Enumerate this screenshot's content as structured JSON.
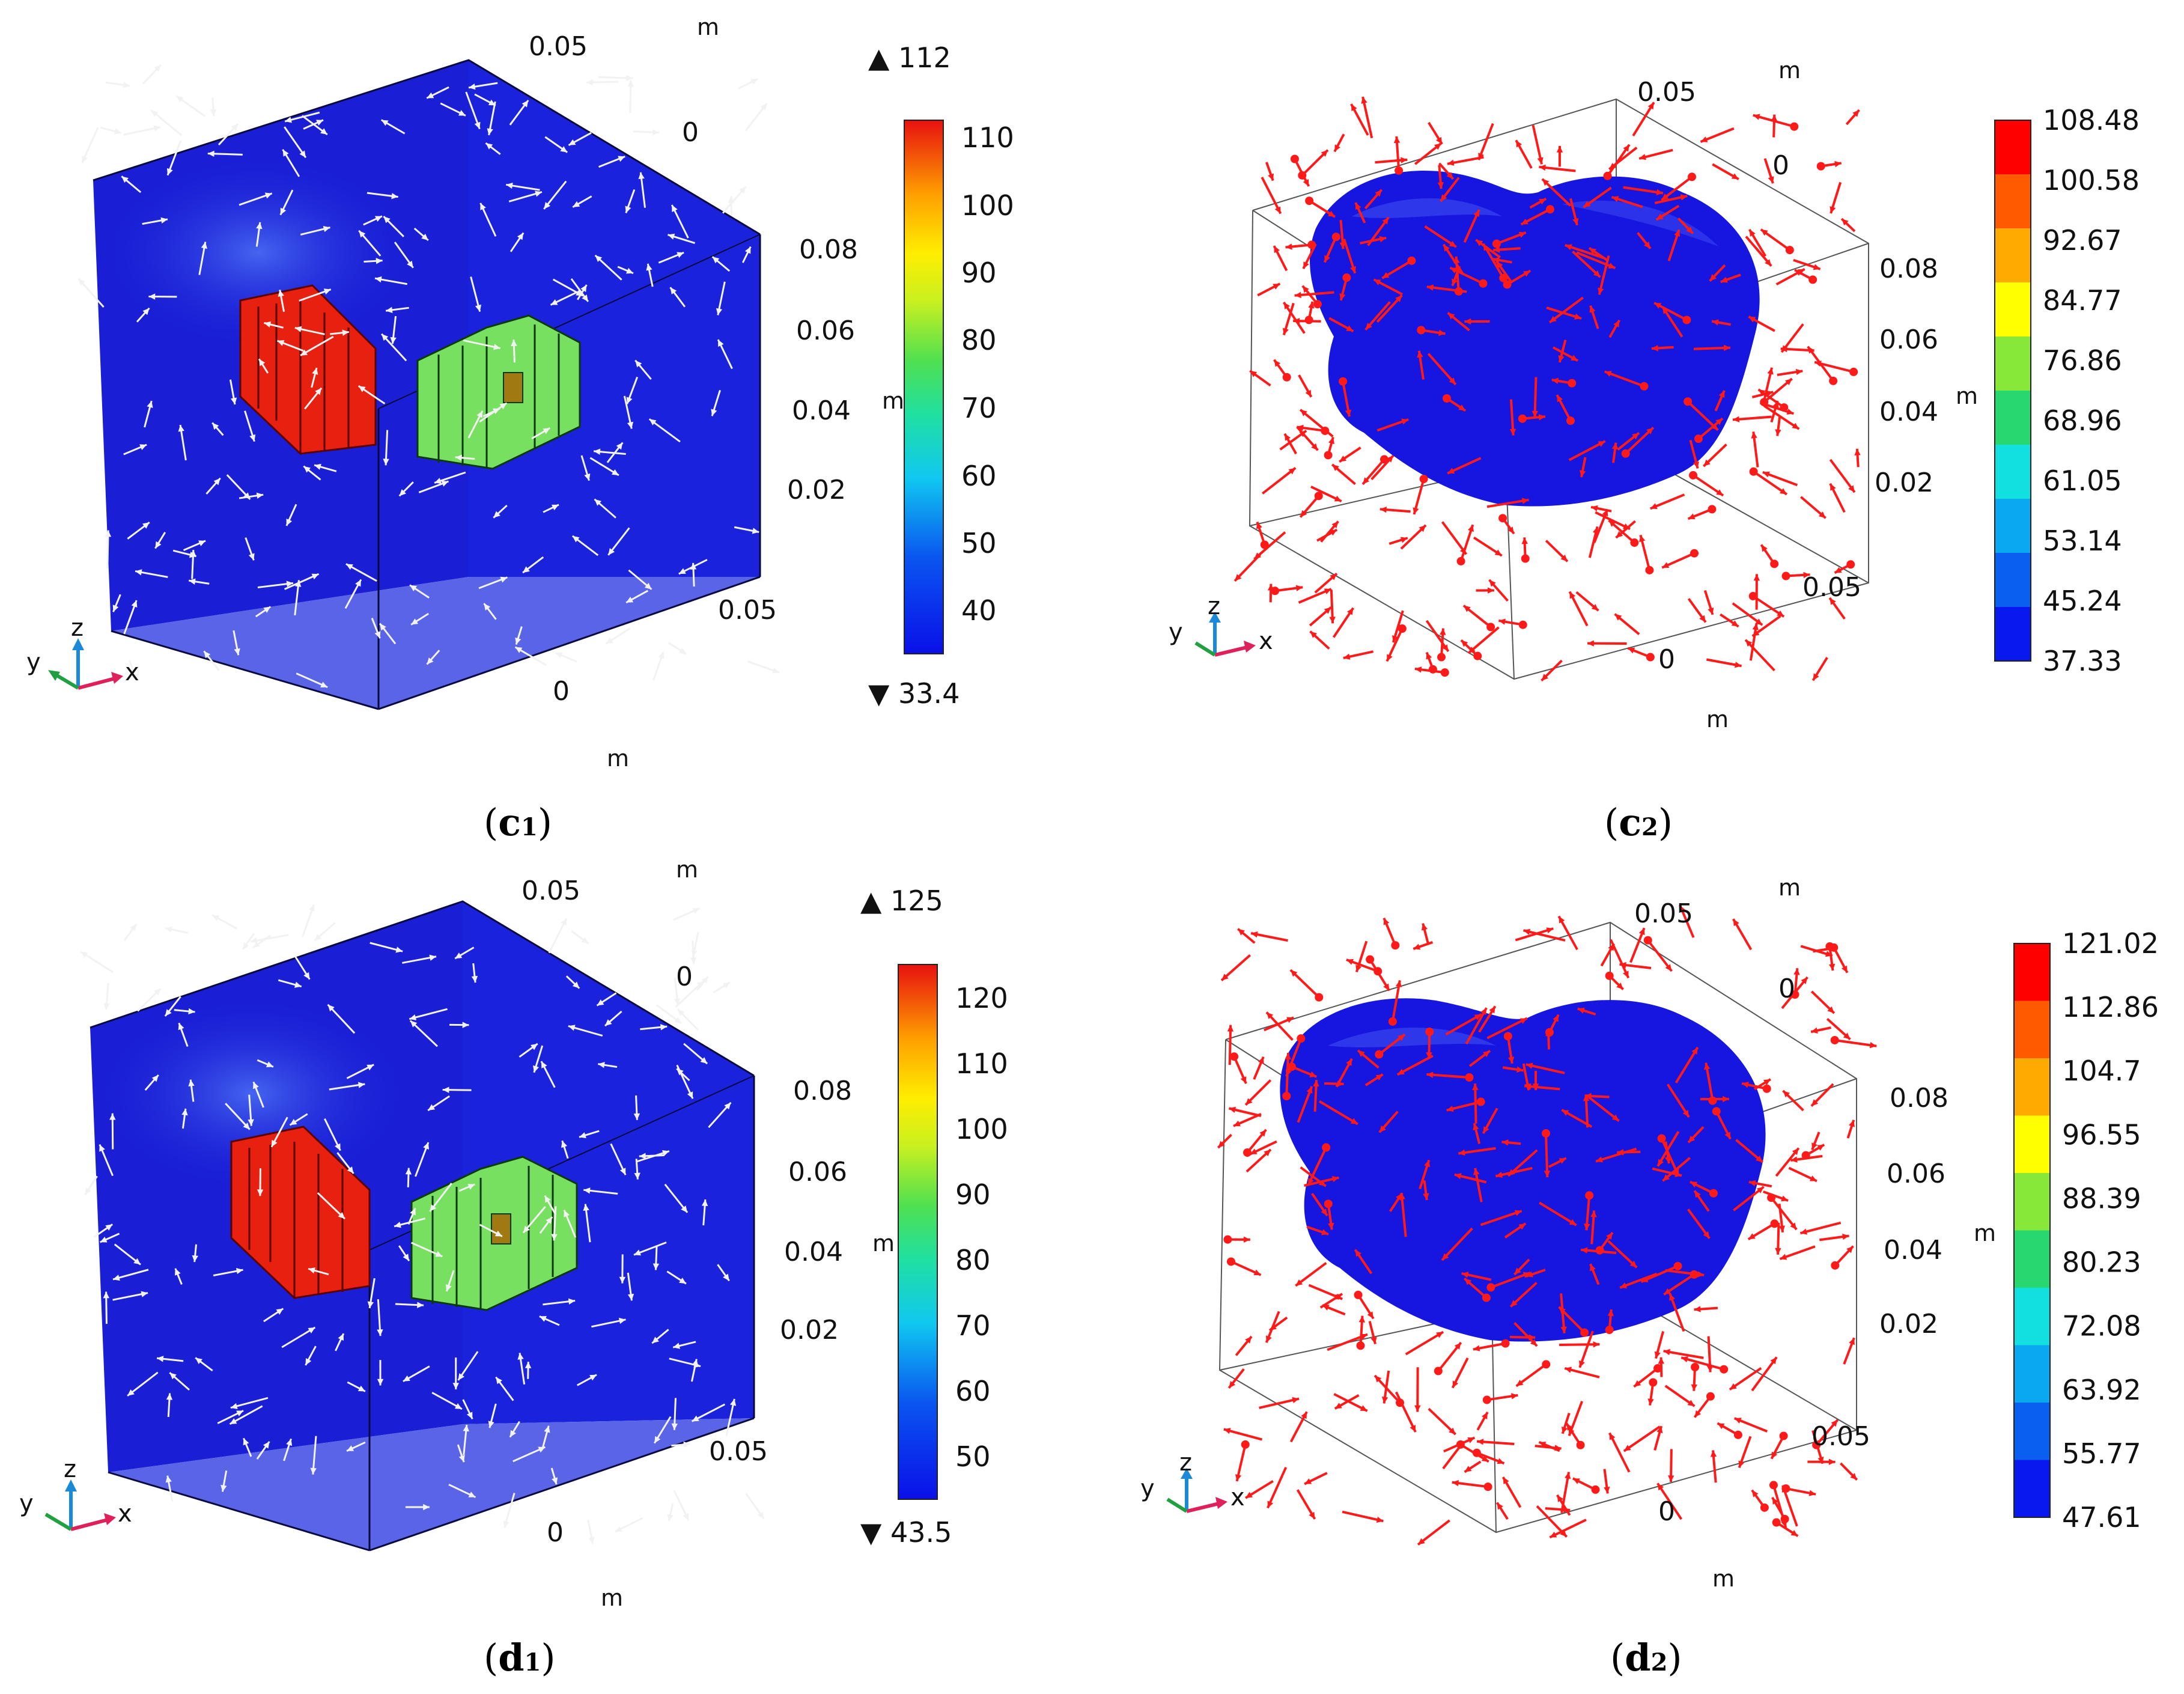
{
  "panels": [
    {
      "id": "c1",
      "style": "box",
      "caption": {
        "letter": "c",
        "sub": "1"
      },
      "ticks": {
        "top_m": "m",
        "top_005": "0.05",
        "top_0": "0",
        "z": [
          "0.08",
          "0.06",
          "0.04",
          "0.02"
        ],
        "z_unit": "m",
        "bottom_005": "0.05",
        "bottom_0": "0",
        "bottom_m": "m"
      },
      "colorbar": {
        "type": "continuous",
        "max_marker": "▲ 112",
        "min_marker": "▼ 33.4",
        "labels": [
          "110",
          "100",
          "90",
          "80",
          "70",
          "60",
          "50",
          "40"
        ]
      },
      "triad": {
        "x": "x",
        "y": "y",
        "z": "z"
      }
    },
    {
      "id": "c2",
      "style": "blob",
      "caption": {
        "letter": "c",
        "sub": "2"
      },
      "ticks": {
        "top_m": "m",
        "top_005": "0.05",
        "top_0": "0",
        "z": [
          "0.08",
          "0.06",
          "0.04",
          "0.02"
        ],
        "z_unit": "m",
        "bottom_005": "0.05",
        "bottom_0": "0",
        "bottom_m": "m"
      },
      "colorbar": {
        "type": "discrete",
        "labels": [
          "108.48",
          "100.58",
          "92.67",
          "84.77",
          "76.86",
          "68.96",
          "61.05",
          "53.14",
          "45.24",
          "37.33"
        ]
      },
      "triad": {
        "x": "x",
        "y": "y",
        "z": "z"
      }
    },
    {
      "id": "d1",
      "style": "box",
      "caption": {
        "letter": "d",
        "sub": "1"
      },
      "ticks": {
        "top_m": "m",
        "top_005": "0.05",
        "top_0": "0",
        "z": [
          "0.08",
          "0.06",
          "0.04",
          "0.02"
        ],
        "z_unit": "m",
        "bottom_005": "0.05",
        "bottom_0": "0",
        "bottom_m": "m"
      },
      "colorbar": {
        "type": "continuous",
        "max_marker": "▲ 125",
        "min_marker": "▼ 43.5",
        "labels": [
          "120",
          "110",
          "100",
          "90",
          "80",
          "70",
          "60",
          "50"
        ]
      },
      "triad": {
        "x": "x",
        "y": "y",
        "z": "z"
      }
    },
    {
      "id": "d2",
      "style": "blob",
      "caption": {
        "letter": "d",
        "sub": "2"
      },
      "ticks": {
        "top_m": "m",
        "top_005": "0.05",
        "top_0": "0",
        "z": [
          "0.08",
          "0.06",
          "0.04",
          "0.02"
        ],
        "z_unit": "m",
        "bottom_005": "0.05",
        "bottom_0": "0",
        "bottom_m": "m"
      },
      "colorbar": {
        "type": "discrete",
        "labels": [
          "121.02",
          "112.86",
          "104.7",
          "96.55",
          "88.39",
          "80.23",
          "72.08",
          "63.92",
          "55.77",
          "47.61"
        ]
      },
      "triad": {
        "x": "x",
        "y": "y",
        "z": "z"
      }
    }
  ],
  "colors": {
    "wall_blue": "#1a1fd6",
    "floor_blue": "#5a64e6",
    "hot_red": "#e8200f",
    "warm_green": "#78e060",
    "arrow_white": "#f2f2f2",
    "arrow_red": "#ff1a1a",
    "blob_blue": "#1616e0",
    "cb_discrete": [
      "#ff0000",
      "#ff5a00",
      "#ffaa00",
      "#ffff00",
      "#88e83a",
      "#28d86e",
      "#10e0e0",
      "#0aa8f0",
      "#0a5ff0",
      "#0a18f0"
    ]
  }
}
